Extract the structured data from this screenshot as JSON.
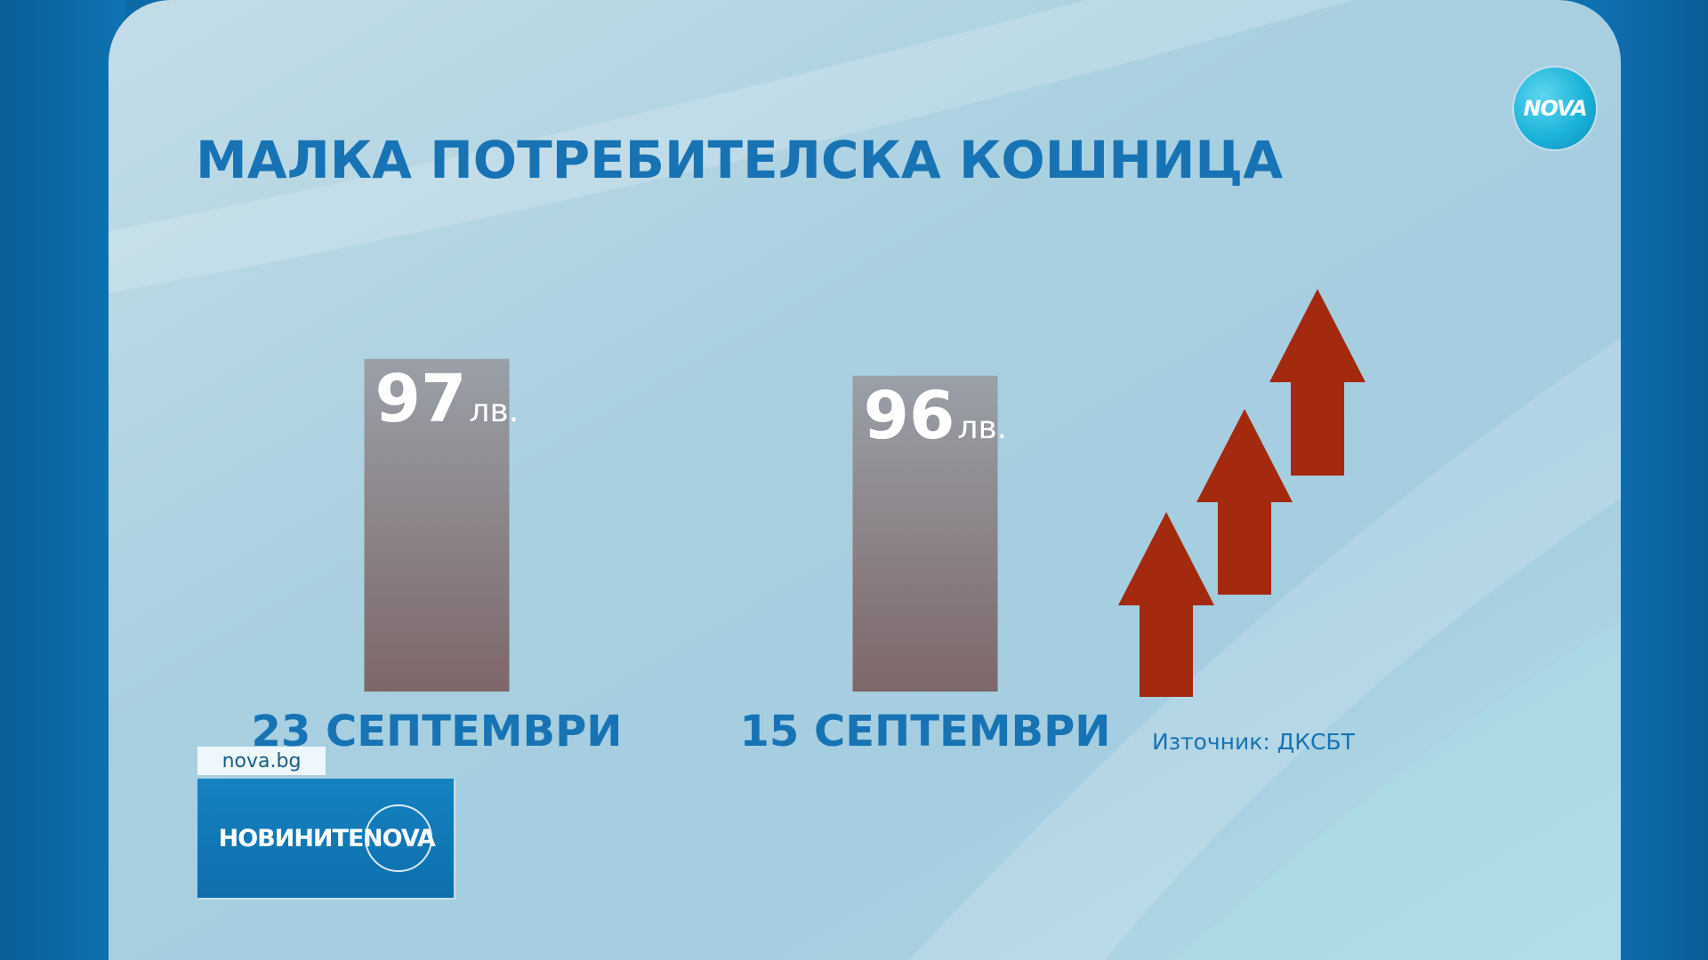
{
  "title": "МАЛКА ПОТРЕБИТЕЛСКА КОШНИЦА",
  "logo_text": "NOVA",
  "source": "Източник: ДКСБТ",
  "site_tag": "nova.bg",
  "news_brand": {
    "part1": "НОВИНИТЕ",
    "part2": "NOVA"
  },
  "colors": {
    "title": "#1773b4",
    "bar_top": "#9aa0a8",
    "bar_bottom": "#7d6769",
    "arrow": "#a32a0e"
  },
  "decorations": {
    "arrows": [
      "up-arrow-icon",
      "up-arrow-icon",
      "up-arrow-icon"
    ]
  },
  "chart_data": {
    "type": "bar",
    "categories": [
      "23 СЕПТЕМВРИ",
      "15 СЕПТЕМВРИ"
    ],
    "values": [
      97,
      96
    ],
    "value_labels": [
      "97",
      "96"
    ],
    "unit": "лв.",
    "title": "МАЛКА ПОТРЕБИТЕЛСКА КОШНИЦА",
    "xlabel": "",
    "ylabel": "",
    "grid": false
  }
}
